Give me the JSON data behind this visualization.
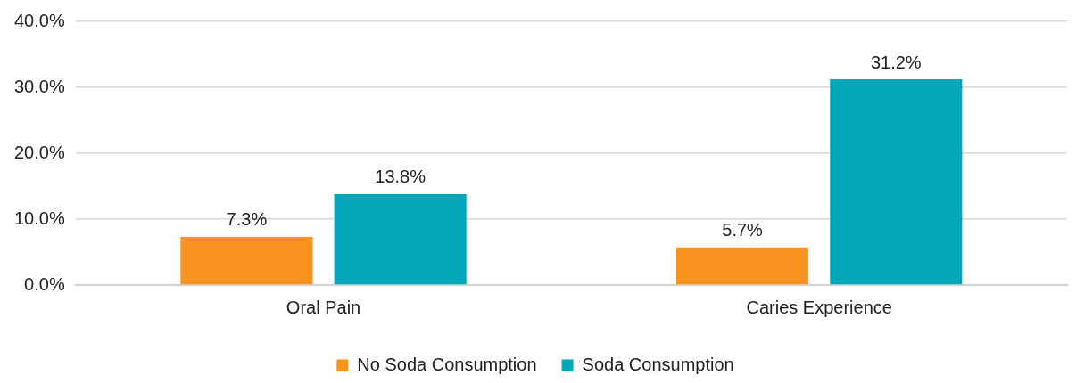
{
  "chart_data": {
    "type": "bar",
    "categories": [
      "Oral Pain",
      "Caries Experience"
    ],
    "series": [
      {
        "name": "No Soda Consumption",
        "color": "#f7931e",
        "values": [
          7.3,
          5.7
        ],
        "value_labels": [
          "7.3%",
          "5.7%"
        ]
      },
      {
        "name": "Soda Consumption",
        "color": "#04a7b7",
        "values": [
          13.8,
          31.2
        ],
        "value_labels": [
          "13.8%",
          "31.2%"
        ]
      }
    ],
    "ylim": [
      0,
      40
    ],
    "yticks": [
      {
        "value": 0,
        "label": "0.0%"
      },
      {
        "value": 10,
        "label": "10.0%"
      },
      {
        "value": 20,
        "label": "20.0%"
      },
      {
        "value": 30,
        "label": "30.0%"
      },
      {
        "value": 40,
        "label": "40.0%"
      }
    ],
    "grid": "y",
    "legend": "bottom"
  }
}
